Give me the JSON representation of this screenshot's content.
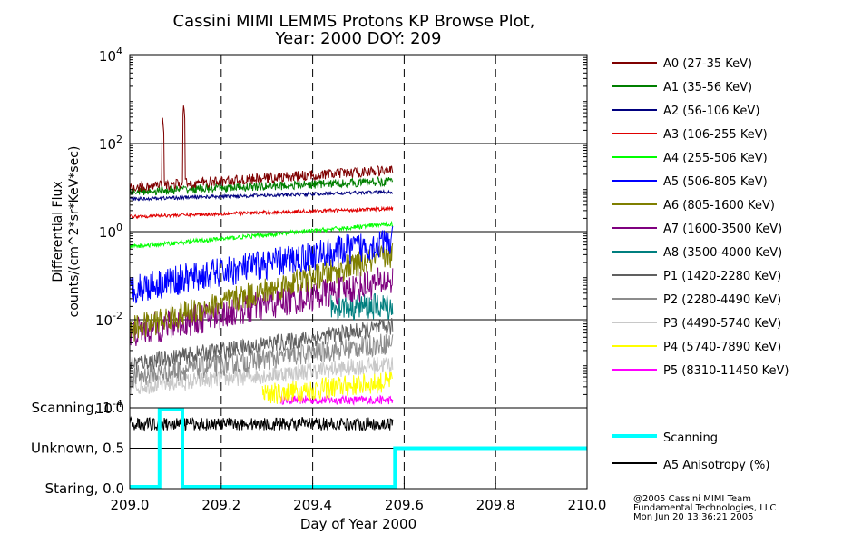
{
  "chart_data": {
    "type": "line",
    "title": "Cassini MIMI LEMMS Protons KP Browse Plot,",
    "subtitle": "Year: 2000 DOY: 209",
    "xlabel": "Day of Year 2000",
    "x_ticks": [
      "209.0",
      "209.2",
      "209.4",
      "209.6",
      "209.8",
      "210.0"
    ],
    "xlim": [
      209.0,
      210.0
    ],
    "flux_panel": {
      "ylabel": "Differential Flux",
      "ylabel2": "counts/(cm^2*sr*KeV*sec)",
      "scale": "log",
      "ylim": [
        0.0001,
        10000
      ],
      "y_ticks": [
        {
          "base": "10",
          "exp": "4",
          "value": 10000
        },
        {
          "base": "10",
          "exp": "2",
          "value": 100
        },
        {
          "base": "10",
          "exp": "0",
          "value": 1
        },
        {
          "base": "10",
          "exp": "-2",
          "value": 0.01
        },
        {
          "base": "10",
          "exp": "-4",
          "value": 0.0001
        }
      ],
      "data_end_x": 209.575,
      "series": [
        {
          "name": "A0 (27-35 KeV)",
          "color": "#7f0000",
          "start_level": 10,
          "end_level": 25,
          "noise_decades": 0.12,
          "spikes": [
            {
              "x": 209.072,
              "value": 400
            },
            {
              "x": 209.118,
              "value": 800
            }
          ]
        },
        {
          "name": "A1 (35-56 KeV)",
          "color": "#007f00",
          "start_level": 8,
          "end_level": 14,
          "noise_decades": 0.1
        },
        {
          "name": "A2 (56-106 KeV)",
          "color": "#00007f",
          "start_level": 5.5,
          "end_level": 8,
          "noise_decades": 0.04
        },
        {
          "name": "A3 (106-255 KeV)",
          "color": "#e00000",
          "start_level": 2.2,
          "end_level": 3.3,
          "noise_decades": 0.04
        },
        {
          "name": "A4 (255-506 KeV)",
          "color": "#00ff00",
          "start_level": 0.45,
          "end_level": 1.5,
          "noise_decades": 0.05
        },
        {
          "name": "A5 (506-805 KeV)",
          "color": "#0000ff",
          "start_level": 0.05,
          "end_level": 0.6,
          "noise_decades": 0.35
        },
        {
          "name": "A6 (805-1600 KeV)",
          "color": "#7f7f00",
          "start_level": 0.006,
          "end_level": 0.3,
          "noise_decades": 0.3
        },
        {
          "name": "A7 (1600-3500 KeV)",
          "color": "#7f007f",
          "start_level": 0.005,
          "end_level": 0.08,
          "noise_decades": 0.35
        },
        {
          "name": "A8 (3500-4000 KeV)",
          "color": "#007f7f",
          "segment": [
            209.44,
            209.575
          ],
          "start_level": 0.02,
          "end_level": 0.02,
          "noise_decades": 0.3
        },
        {
          "name": "P1 (1420-2280 KeV)",
          "color": "#606060",
          "start_level": 0.001,
          "end_level": 0.007,
          "noise_decades": 0.2
        },
        {
          "name": "P2 (2280-4490 KeV)",
          "color": "#8c8c8c",
          "start_level": 0.0005,
          "end_level": 0.003,
          "noise_decades": 0.25
        },
        {
          "name": "P3 (4490-5740 KeV)",
          "color": "#c8c8c8",
          "start_level": 0.0003,
          "end_level": 0.001,
          "noise_decades": 0.2
        },
        {
          "name": "P4 (5740-7890 KeV)",
          "color": "#ffff00",
          "segment": [
            209.29,
            209.575
          ],
          "start_level": 0.0002,
          "end_level": 0.0004,
          "noise_decades": 0.25
        },
        {
          "name": "P5 (8310-11450 KeV)",
          "color": "#ff00ff",
          "segment": [
            209.33,
            209.575
          ],
          "start_level": 0.00015,
          "end_level": 0.00015,
          "noise_decades": 0.1
        }
      ]
    },
    "mode_panel": {
      "ylim": [
        0.0,
        1.0
      ],
      "y_ticks": [
        {
          "label": "Scanning, 1.0",
          "value": 1.0
        },
        {
          "label": "Unknown, 0.5",
          "value": 0.5
        },
        {
          "label": "Staring, 0.0",
          "value": 0.0
        }
      ],
      "series": [
        {
          "name": "Scanning",
          "color": "#00ffff",
          "steps": [
            [
              209.0,
              0.0
            ],
            [
              209.065,
              0.0
            ],
            [
              209.065,
              1.0
            ],
            [
              209.115,
              1.0
            ],
            [
              209.115,
              0.0
            ],
            [
              209.58,
              0.0
            ],
            [
              209.58,
              0.5
            ],
            [
              210.0,
              0.5
            ]
          ]
        },
        {
          "name": "A5 Anisotropy (%)",
          "color": "#000000",
          "level": 0.8,
          "noise": 0.08,
          "end_x": 209.575
        }
      ]
    }
  },
  "credits": {
    "line1": "@2005 Cassini MIMI Team",
    "line2": "Fundamental Technologies, LLC",
    "line3": "Mon Jun 20 13:36:21 2005"
  }
}
